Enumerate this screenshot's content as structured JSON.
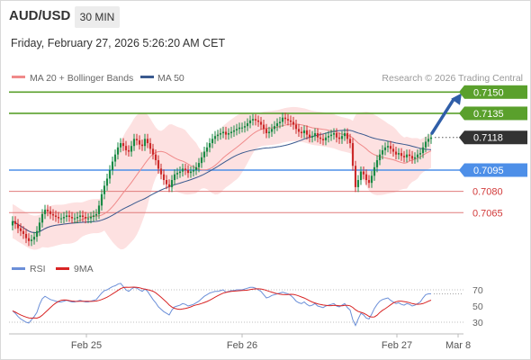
{
  "header": {
    "symbol": "AUD/USD",
    "timeframe": "30 MIN",
    "datetime": "Friday, February 27, 2026 5:26:20 AM CET"
  },
  "colors": {
    "resistance": "#5aa02c",
    "pivot": "#4d8fe8",
    "support": "#e07b7b",
    "current_price": "#333333",
    "bollinger_fill": "#fde1e1",
    "ma20": "#f08a8a",
    "ma50": "#3a5a8f",
    "candle_up": "#1a8a45",
    "candle_down": "#cc2a2a",
    "arrow": "#2f5ea8",
    "rsi": "#6b8fd8",
    "rsi_ma": "#d82424"
  },
  "chart_data": [
    {
      "type": "candlestick",
      "legend": [
        {
          "name": "MA 20 + Bollinger Bands",
          "color": "#f08a8a"
        },
        {
          "name": "MA 50",
          "color": "#3a5a8f"
        }
      ],
      "legend_position": "top-left",
      "watermark": "Research © 2026 Trading Central",
      "x_ticks": [
        "Feb 25",
        "Feb 26",
        "Feb 27",
        "Mar 8"
      ],
      "y_range": [
        7.036,
        7.154
      ],
      "current_price": "0.7118",
      "levels": [
        {
          "label": "0.7150",
          "value": 0.715,
          "kind": "resistance"
        },
        {
          "label": "0.7135",
          "value": 0.7135,
          "kind": "resistance"
        },
        {
          "label": "0.7095",
          "value": 0.7095,
          "kind": "pivot"
        },
        {
          "label": "0.7080",
          "value": 0.708,
          "kind": "support"
        },
        {
          "label": "0.7065",
          "value": 0.7065,
          "kind": "support"
        }
      ],
      "closes": [
        0.7059,
        0.7057,
        0.7054,
        0.7052,
        0.705,
        0.7047,
        0.7045,
        0.7046,
        0.7048,
        0.7052,
        0.7058,
        0.7064,
        0.7067,
        0.7066,
        0.7064,
        0.7063,
        0.7062,
        0.7061,
        0.7061,
        0.7062,
        0.7063,
        0.7062,
        0.7061,
        0.7061,
        0.7062,
        0.7063,
        0.7062,
        0.7061,
        0.7061,
        0.7062,
        0.7063,
        0.7064,
        0.707,
        0.7078,
        0.7084,
        0.7089,
        0.7095,
        0.7101,
        0.7106,
        0.7111,
        0.7114,
        0.7112,
        0.7109,
        0.7108,
        0.7112,
        0.7117,
        0.7116,
        0.7113,
        0.7112,
        0.7117,
        0.7114,
        0.711,
        0.7106,
        0.7102,
        0.7096,
        0.7092,
        0.7088,
        0.7085,
        0.7083,
        0.7088,
        0.7092,
        0.7093,
        0.7094,
        0.7096,
        0.7095,
        0.7093,
        0.7094,
        0.7095,
        0.7097,
        0.71,
        0.7104,
        0.7108,
        0.7111,
        0.7114,
        0.7117,
        0.7119,
        0.712,
        0.7121,
        0.7122,
        0.712,
        0.7121,
        0.7122,
        0.7123,
        0.7124,
        0.7125,
        0.7125,
        0.7126,
        0.7128,
        0.713,
        0.7131,
        0.713,
        0.7129,
        0.7127,
        0.7124,
        0.7121,
        0.7122,
        0.7124,
        0.7126,
        0.7128,
        0.7129,
        0.7132,
        0.7131,
        0.713,
        0.7129,
        0.7127,
        0.7124,
        0.7122,
        0.7121,
        0.7123,
        0.712,
        0.7118,
        0.7119,
        0.7121,
        0.7118,
        0.7117,
        0.7116,
        0.7118,
        0.7119,
        0.712,
        0.7121,
        0.7118,
        0.7117,
        0.7119,
        0.7121,
        0.7117,
        0.7114,
        0.7098,
        0.7083,
        0.7088,
        0.7094,
        0.7092,
        0.7088,
        0.7086,
        0.7091,
        0.7097,
        0.7102,
        0.7106,
        0.7109,
        0.7111,
        0.7112,
        0.711,
        0.7108,
        0.7106,
        0.7107,
        0.7105,
        0.7104,
        0.7106,
        0.7105,
        0.7103,
        0.7104,
        0.7106,
        0.7107,
        0.7111,
        0.7115,
        0.7117,
        0.7118
      ]
    },
    {
      "type": "line",
      "name": "RSI",
      "legend": [
        {
          "name": "RSI",
          "color": "#6b8fd8"
        },
        {
          "name": "9MA",
          "color": "#d82424"
        }
      ],
      "y_ticks": [
        "70",
        "50",
        "30"
      ],
      "y_range": [
        20,
        80
      ],
      "guide_levels": [
        70,
        30
      ],
      "rsi": [
        44,
        41,
        37,
        34,
        32,
        30,
        29,
        33,
        37,
        42,
        52,
        59,
        62,
        60,
        58,
        57,
        56,
        55,
        55,
        56,
        57,
        56,
        55,
        55,
        56,
        57,
        56,
        55,
        55,
        56,
        57,
        58,
        62,
        66,
        69,
        70,
        72,
        74,
        75,
        77,
        78,
        74,
        70,
        68,
        71,
        73,
        72,
        70,
        68,
        71,
        68,
        63,
        58,
        54,
        49,
        46,
        43,
        41,
        39,
        45,
        49,
        50,
        51,
        53,
        52,
        50,
        51,
        52,
        54,
        56,
        59,
        62,
        64,
        66,
        67,
        68,
        68,
        69,
        70,
        67,
        68,
        69,
        69,
        70,
        70,
        70,
        71,
        72,
        73,
        73,
        72,
        70,
        68,
        64,
        60,
        61,
        63,
        64,
        65,
        66,
        67,
        66,
        65,
        63,
        60,
        56,
        54,
        53,
        55,
        52,
        50,
        51,
        53,
        50,
        49,
        48,
        50,
        51,
        52,
        53,
        50,
        49,
        51,
        53,
        48,
        45,
        33,
        26,
        34,
        41,
        39,
        35,
        34,
        40,
        47,
        52,
        56,
        58,
        59,
        60,
        57,
        55,
        53,
        54,
        52,
        51,
        53,
        52,
        50,
        51,
        53,
        55,
        60,
        64,
        65,
        65
      ]
    }
  ]
}
